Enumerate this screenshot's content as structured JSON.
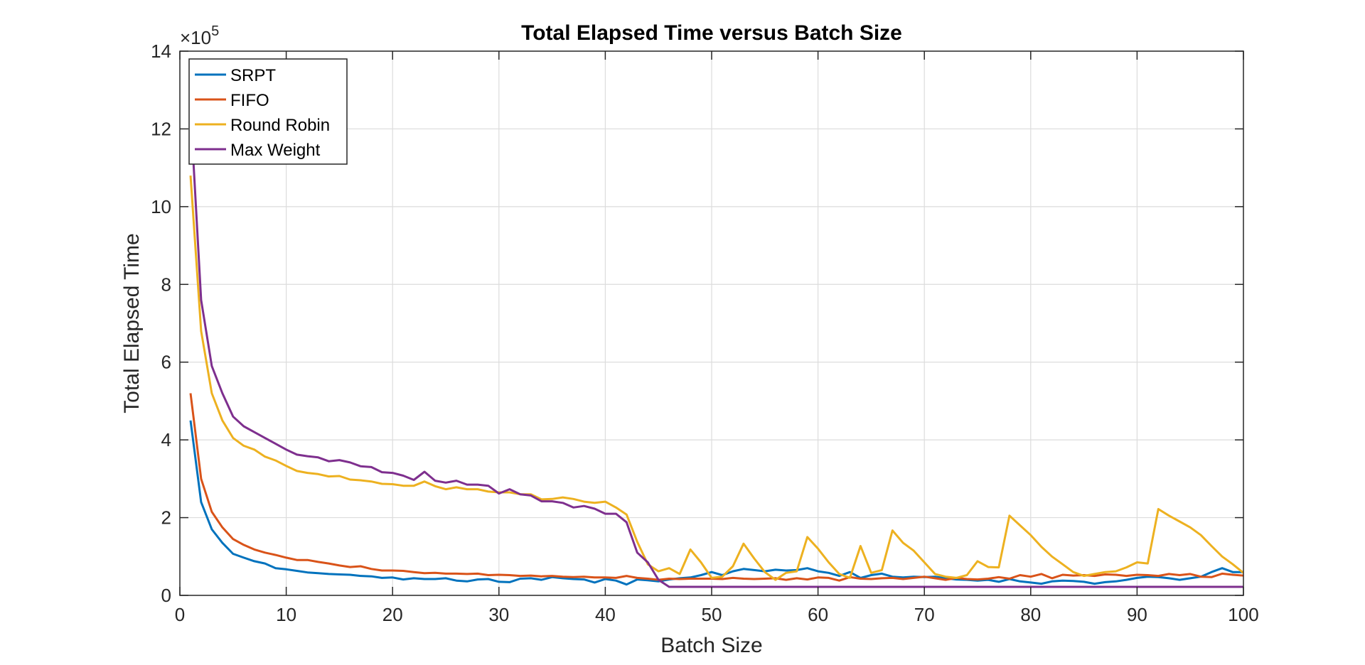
{
  "chart_data": {
    "type": "line",
    "title": "Total Elapsed Time versus Batch Size",
    "xlabel": "Batch Size",
    "ylabel": "Total Elapsed Time",
    "y_exponent_base": "×10",
    "y_exponent_power": "5",
    "xlim": [
      0,
      100
    ],
    "ylim": [
      0,
      14
    ],
    "xticks": [
      0,
      10,
      20,
      30,
      40,
      50,
      60,
      70,
      80,
      90,
      100
    ],
    "yticks": [
      0,
      2,
      4,
      6,
      8,
      10,
      12,
      14
    ],
    "grid": true,
    "legend_position": "top-left",
    "series": [
      {
        "name": "SRPT",
        "color": "#0072BD",
        "x": [
          1,
          2,
          3,
          4,
          5,
          6,
          7,
          8,
          9,
          10,
          11,
          12,
          13,
          14,
          15,
          16,
          17,
          18,
          19,
          20,
          21,
          22,
          23,
          24,
          25,
          26,
          27,
          28,
          29,
          30,
          31,
          32,
          33,
          34,
          35,
          36,
          37,
          38,
          39,
          40,
          41,
          42,
          43,
          44,
          45,
          46,
          47,
          48,
          49,
          50,
          51,
          52,
          53,
          54,
          55,
          56,
          57,
          58,
          59,
          60,
          61,
          62,
          63,
          64,
          65,
          66,
          67,
          68,
          69,
          70,
          71,
          72,
          73,
          74,
          75,
          76,
          77,
          78,
          79,
          80,
          81,
          82,
          83,
          84,
          85,
          86,
          87,
          88,
          89,
          90,
          91,
          92,
          93,
          94,
          95,
          96,
          97,
          98,
          99,
          100
        ],
        "y": [
          4.5,
          2.4,
          1.7,
          1.35,
          1.07,
          0.97,
          0.88,
          0.82,
          0.7,
          0.67,
          0.63,
          0.59,
          0.57,
          0.55,
          0.54,
          0.53,
          0.5,
          0.49,
          0.45,
          0.46,
          0.41,
          0.44,
          0.42,
          0.42,
          0.44,
          0.38,
          0.36,
          0.41,
          0.42,
          0.35,
          0.34,
          0.43,
          0.44,
          0.4,
          0.47,
          0.44,
          0.42,
          0.41,
          0.33,
          0.42,
          0.38,
          0.28,
          0.41,
          0.39,
          0.36,
          0.41,
          0.44,
          0.46,
          0.52,
          0.6,
          0.52,
          0.62,
          0.68,
          0.65,
          0.62,
          0.66,
          0.64,
          0.65,
          0.7,
          0.62,
          0.58,
          0.5,
          0.6,
          0.45,
          0.52,
          0.56,
          0.48,
          0.46,
          0.48,
          0.47,
          0.48,
          0.44,
          0.41,
          0.4,
          0.38,
          0.4,
          0.35,
          0.42,
          0.36,
          0.33,
          0.3,
          0.36,
          0.38,
          0.37,
          0.35,
          0.3,
          0.34,
          0.36,
          0.4,
          0.45,
          0.48,
          0.47,
          0.44,
          0.4,
          0.44,
          0.48,
          0.6,
          0.7,
          0.6,
          0.6
        ]
      },
      {
        "name": "FIFO",
        "color": "#D95319",
        "x": [
          1,
          2,
          3,
          4,
          5,
          6,
          7,
          8,
          9,
          10,
          11,
          12,
          13,
          14,
          15,
          16,
          17,
          18,
          19,
          20,
          21,
          22,
          23,
          24,
          25,
          26,
          27,
          28,
          29,
          30,
          31,
          32,
          33,
          34,
          35,
          36,
          37,
          38,
          39,
          40,
          41,
          42,
          43,
          44,
          45,
          46,
          47,
          48,
          49,
          50,
          51,
          52,
          53,
          54,
          55,
          56,
          57,
          58,
          59,
          60,
          61,
          62,
          63,
          64,
          65,
          66,
          67,
          68,
          69,
          70,
          71,
          72,
          73,
          74,
          75,
          76,
          77,
          78,
          79,
          80,
          81,
          82,
          83,
          84,
          85,
          86,
          87,
          88,
          89,
          90,
          91,
          92,
          93,
          94,
          95,
          96,
          97,
          98,
          99,
          100
        ],
        "y": [
          5.2,
          3.0,
          2.15,
          1.75,
          1.45,
          1.3,
          1.18,
          1.1,
          1.04,
          0.97,
          0.91,
          0.91,
          0.86,
          0.82,
          0.77,
          0.73,
          0.75,
          0.68,
          0.64,
          0.64,
          0.63,
          0.6,
          0.57,
          0.58,
          0.56,
          0.56,
          0.55,
          0.56,
          0.52,
          0.53,
          0.52,
          0.5,
          0.51,
          0.49,
          0.5,
          0.48,
          0.47,
          0.48,
          0.46,
          0.46,
          0.45,
          0.5,
          0.45,
          0.43,
          0.4,
          0.43,
          0.42,
          0.43,
          0.43,
          0.43,
          0.42,
          0.45,
          0.43,
          0.42,
          0.43,
          0.44,
          0.4,
          0.44,
          0.41,
          0.46,
          0.45,
          0.38,
          0.47,
          0.43,
          0.42,
          0.44,
          0.45,
          0.42,
          0.45,
          0.48,
          0.44,
          0.4,
          0.45,
          0.42,
          0.41,
          0.43,
          0.47,
          0.43,
          0.52,
          0.48,
          0.55,
          0.44,
          0.53,
          0.51,
          0.52,
          0.5,
          0.54,
          0.53,
          0.5,
          0.53,
          0.52,
          0.5,
          0.55,
          0.52,
          0.55,
          0.48,
          0.47,
          0.56,
          0.53,
          0.51
        ]
      },
      {
        "name": "Round Robin",
        "color": "#EDB120",
        "x": [
          1,
          2,
          3,
          4,
          5,
          6,
          7,
          8,
          9,
          10,
          11,
          12,
          13,
          14,
          15,
          16,
          17,
          18,
          19,
          20,
          21,
          22,
          23,
          24,
          25,
          26,
          27,
          28,
          29,
          30,
          31,
          32,
          33,
          34,
          35,
          36,
          37,
          38,
          39,
          40,
          41,
          42,
          43,
          44,
          45,
          46,
          47,
          48,
          49,
          50,
          51,
          52,
          53,
          54,
          55,
          56,
          57,
          58,
          59,
          60,
          61,
          62,
          63,
          64,
          65,
          66,
          67,
          68,
          69,
          70,
          71,
          72,
          73,
          74,
          75,
          76,
          77,
          78,
          79,
          80,
          81,
          82,
          83,
          84,
          85,
          86,
          87,
          88,
          89,
          90,
          91,
          92,
          93,
          94,
          95,
          96,
          97,
          98,
          99,
          100
        ],
        "y": [
          10.8,
          6.8,
          5.2,
          4.5,
          4.05,
          3.85,
          3.75,
          3.57,
          3.47,
          3.33,
          3.2,
          3.15,
          3.12,
          3.06,
          3.07,
          2.98,
          2.96,
          2.93,
          2.87,
          2.86,
          2.82,
          2.82,
          2.93,
          2.81,
          2.73,
          2.78,
          2.73,
          2.73,
          2.67,
          2.65,
          2.65,
          2.6,
          2.6,
          2.47,
          2.48,
          2.52,
          2.48,
          2.41,
          2.38,
          2.41,
          2.26,
          2.08,
          1.38,
          0.8,
          0.62,
          0.7,
          0.55,
          1.18,
          0.85,
          0.45,
          0.48,
          0.75,
          1.33,
          0.95,
          0.6,
          0.4,
          0.58,
          0.62,
          1.5,
          1.2,
          0.85,
          0.55,
          0.45,
          1.27,
          0.58,
          0.65,
          1.67,
          1.35,
          1.15,
          0.85,
          0.55,
          0.48,
          0.45,
          0.52,
          0.88,
          0.73,
          0.72,
          2.05,
          1.8,
          1.55,
          1.25,
          1.0,
          0.8,
          0.6,
          0.5,
          0.55,
          0.6,
          0.62,
          0.72,
          0.85,
          0.82,
          2.22,
          2.05,
          1.9,
          1.75,
          1.55,
          1.27,
          1.0,
          0.8,
          0.58
        ]
      },
      {
        "name": "Max Weight",
        "color": "#7E2F8E",
        "x": [
          1,
          2,
          3,
          4,
          5,
          6,
          7,
          8,
          9,
          10,
          11,
          12,
          13,
          14,
          15,
          16,
          17,
          18,
          19,
          20,
          21,
          22,
          23,
          24,
          25,
          26,
          27,
          28,
          29,
          30,
          31,
          32,
          33,
          34,
          35,
          36,
          37,
          38,
          39,
          40,
          41,
          42,
          43,
          44,
          45,
          46,
          47,
          48,
          49,
          50,
          51,
          52,
          53,
          54,
          55,
          56,
          57,
          58,
          59,
          60,
          61,
          62,
          63,
          64,
          65,
          66,
          67,
          68,
          69,
          70,
          71,
          72,
          73,
          74,
          75,
          76,
          77,
          78,
          79,
          80,
          81,
          82,
          83,
          84,
          85,
          86,
          87,
          88,
          89,
          90,
          91,
          92,
          93,
          94,
          95,
          96,
          97,
          98,
          99,
          100
        ],
        "y": [
          12.5,
          7.6,
          5.9,
          5.2,
          4.6,
          4.35,
          4.2,
          4.05,
          3.9,
          3.75,
          3.62,
          3.58,
          3.55,
          3.45,
          3.48,
          3.42,
          3.32,
          3.3,
          3.17,
          3.15,
          3.08,
          2.97,
          3.18,
          2.95,
          2.9,
          2.95,
          2.85,
          2.85,
          2.82,
          2.62,
          2.73,
          2.6,
          2.57,
          2.42,
          2.42,
          2.38,
          2.26,
          2.3,
          2.23,
          2.1,
          2.1,
          1.88,
          1.1,
          0.85,
          0.4,
          0.22,
          0.22,
          0.22,
          0.22,
          0.22,
          0.22,
          0.22,
          0.22,
          0.22,
          0.22,
          0.22,
          0.22,
          0.22,
          0.22,
          0.22,
          0.22,
          0.22,
          0.22,
          0.22,
          0.22,
          0.22,
          0.22,
          0.22,
          0.22,
          0.22,
          0.22,
          0.22,
          0.22,
          0.22,
          0.22,
          0.22,
          0.22,
          0.22,
          0.22,
          0.22,
          0.22,
          0.22,
          0.22,
          0.22,
          0.22,
          0.22,
          0.22,
          0.22,
          0.22,
          0.22,
          0.22,
          0.22,
          0.22,
          0.22,
          0.22,
          0.22,
          0.22,
          0.22,
          0.22,
          0.22
        ]
      }
    ]
  }
}
